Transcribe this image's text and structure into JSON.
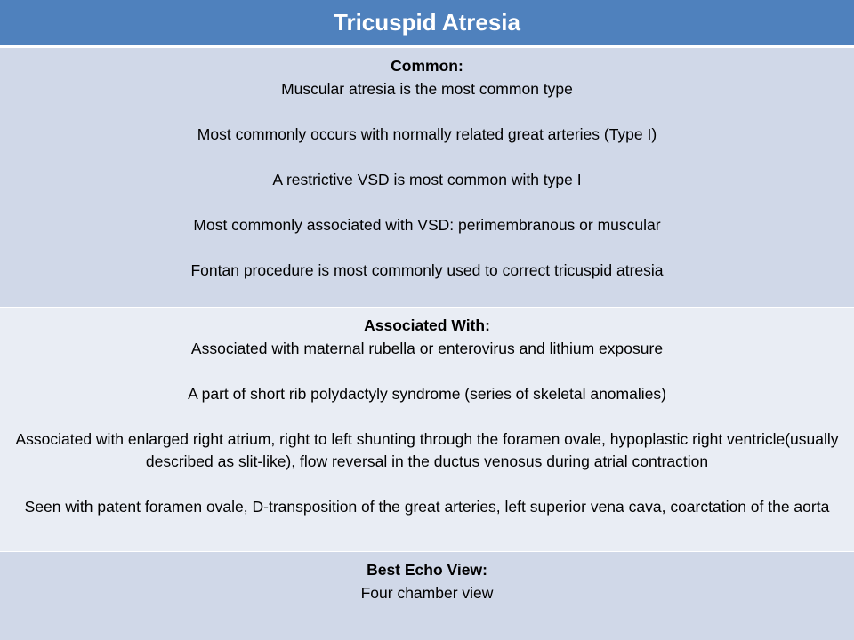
{
  "title": "Tricuspid Atresia",
  "sections": [
    {
      "heading": "Common:",
      "lines": [
        "Muscular atresia is the most common type",
        "Most commonly occurs with normally related great arteries (Type I)",
        "A restrictive VSD is most common with type I",
        "Most commonly associated with VSD: perimembranous or muscular",
        "Fontan procedure is most commonly used to correct tricuspid atresia"
      ]
    },
    {
      "heading": "Associated With:",
      "lines": [
        "Associated with maternal rubella or enterovirus and lithium exposure",
        "A part of short rib polydactyly syndrome (series of skeletal anomalies)",
        "Associated with enlarged right atrium, right to left shunting through the foramen ovale, hypoplastic right ventricle(usually described as slit-like), flow reversal in the ductus venosus during atrial contraction",
        "Seen with patent foramen ovale, D-transposition of the great arteries, left superior vena cava, coarctation of the aorta"
      ]
    },
    {
      "heading": "Best Echo View:",
      "lines": [
        "Four chamber view"
      ]
    }
  ],
  "colors": {
    "header_bg": "#4f81bd",
    "band_dark": "#d0d8e8",
    "band_light": "#e9edf4"
  }
}
